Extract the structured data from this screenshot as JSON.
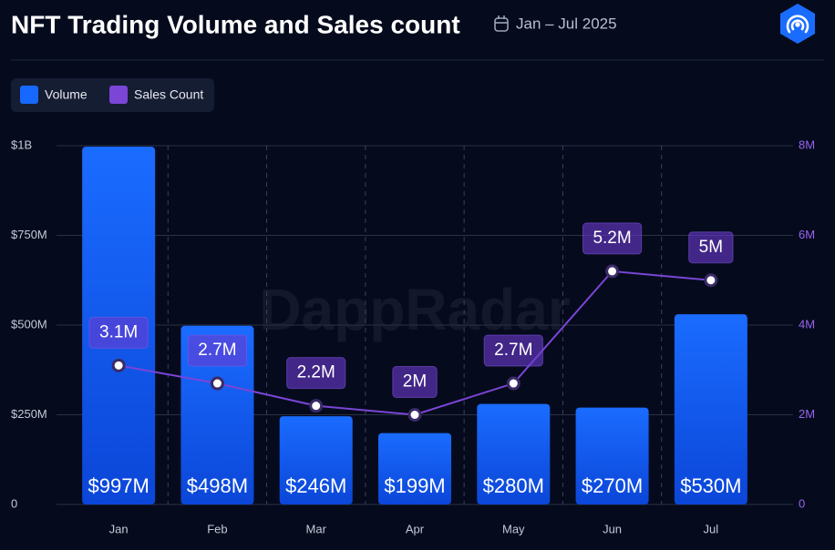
{
  "chart_data": {
    "type": "bar_line",
    "title": "NFT Trading Volume and Sales count",
    "subtitle": "Jan – Jul 2025",
    "watermark": "DappRadar",
    "categories": [
      "Jan",
      "Feb",
      "Mar",
      "Apr",
      "May",
      "Jun",
      "Jul"
    ],
    "series": [
      {
        "name": "Volume",
        "type": "bar",
        "color": "#1668ff",
        "values": [
          997000000,
          498000000,
          246000000,
          199000000,
          280000000,
          270000000,
          530000000
        ],
        "value_labels": [
          "$997M",
          "$498M",
          "$246M",
          "$199M",
          "$280M",
          "$270M",
          "$530M"
        ]
      },
      {
        "name": "Sales Count",
        "type": "line",
        "axis": "y2",
        "color": "#7b45d6",
        "values": [
          3100000,
          2700000,
          2200000,
          2000000,
          2700000,
          5200000,
          5000000
        ],
        "value_labels": [
          "3.1M",
          "2.7M",
          "2.2M",
          "2M",
          "2.7M",
          "5.2M",
          "5M"
        ]
      }
    ],
    "ylim": [
      0,
      1000000000
    ],
    "yticks": [
      0,
      {
        "value": 250000000,
        "label": "$250M"
      },
      {
        "value": 500000000,
        "label": "$500M"
      },
      {
        "value": 750000000,
        "label": "$750M"
      },
      {
        "value": 1000000000,
        "label": "$1B"
      }
    ],
    "y2lim": [
      0,
      8000000
    ],
    "y2ticks": [
      0,
      {
        "value": 2000000,
        "label": "2M"
      },
      {
        "value": 4000000,
        "label": "4M"
      },
      {
        "value": 6000000,
        "label": "6M"
      },
      {
        "value": 8000000,
        "label": "8M"
      }
    ],
    "grid": true
  }
}
